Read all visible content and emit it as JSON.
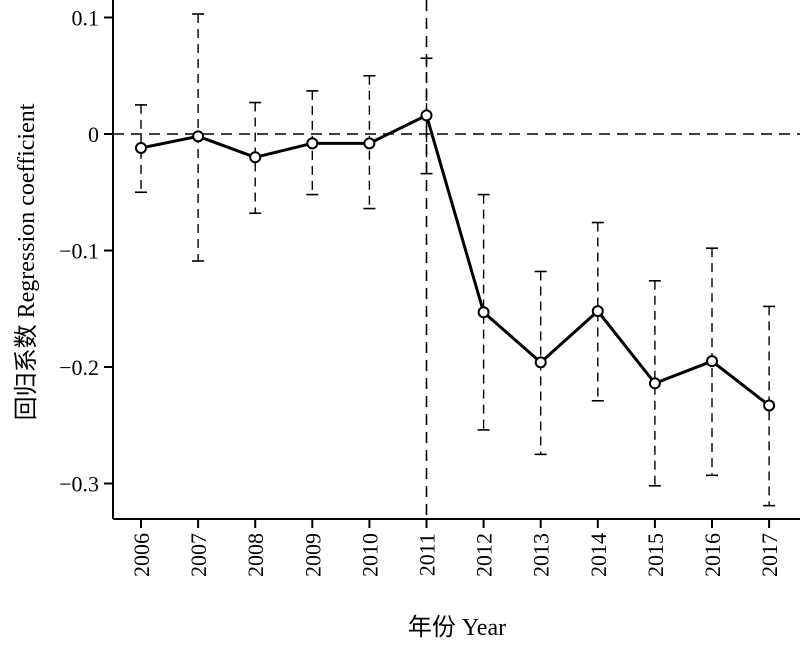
{
  "chart_data": {
    "type": "line",
    "title": "",
    "xlabel": "年份 Year",
    "ylabel": "回归系数 Regression coefficient",
    "x": [
      "2006",
      "2007",
      "2008",
      "2009",
      "2010",
      "2011",
      "2012",
      "2013",
      "2014",
      "2015",
      "2016",
      "2017"
    ],
    "yticks": [
      {
        "value": 0.1,
        "label": "0.1"
      },
      {
        "value": 0,
        "label": "0"
      },
      {
        "value": -0.1,
        "label": "−0.1"
      },
      {
        "value": -0.2,
        "label": "−0.2"
      },
      {
        "value": -0.3,
        "label": "−0.3"
      }
    ],
    "ylim": [
      -0.33,
      0.1
    ],
    "series": [
      {
        "values": [
          -0.012,
          -0.002,
          -0.02,
          -0.008,
          -0.008,
          0.016,
          -0.153,
          -0.196,
          -0.152,
          -0.214,
          -0.195,
          -0.233
        ],
        "lower": [
          -0.05,
          -0.109,
          -0.068,
          -0.052,
          -0.064,
          -0.034,
          -0.254,
          -0.275,
          -0.229,
          -0.302,
          -0.293,
          -0.319
        ],
        "upper": [
          0.025,
          0.103,
          0.027,
          0.037,
          0.05,
          0.065,
          -0.052,
          -0.118,
          -0.076,
          -0.126,
          -0.098,
          -0.148
        ]
      }
    ],
    "reference_lines": {
      "hline_y": 0,
      "vline_x": "2011"
    },
    "grid": false,
    "legend": "none"
  }
}
